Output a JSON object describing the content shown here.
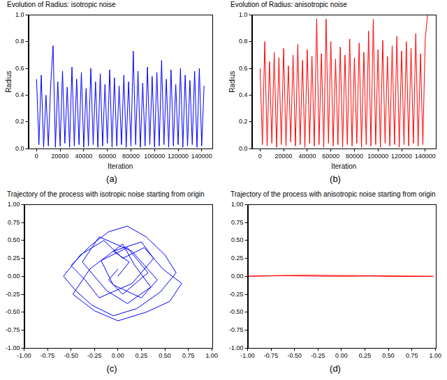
{
  "chart_data": [
    {
      "type": "line",
      "caption": "(a)",
      "title": "Evolution of Radius: isotropic noise",
      "xlabel": "Iteration",
      "ylabel": "Radius",
      "color": "#0000ff",
      "grid": false,
      "xlim": [
        -7000,
        149000
      ],
      "xticks": [
        0,
        20000,
        40000,
        60000,
        80000,
        100000,
        120000,
        140000
      ],
      "ylim": [
        0,
        1
      ],
      "yticks": [
        {
          "value": 0,
          "label": "0.0"
        },
        0.2,
        0.4,
        0.6,
        0.8,
        {
          "value": 1,
          "label": "1.0"
        }
      ],
      "x": [
        0,
        2000,
        4000,
        6000,
        8000,
        10000,
        12000,
        14000,
        16000,
        18000,
        20000,
        22000,
        24000,
        26000,
        28000,
        30000,
        32000,
        34000,
        36000,
        38000,
        40000,
        42000,
        44000,
        46000,
        48000,
        50000,
        52000,
        54000,
        56000,
        58000,
        60000,
        62000,
        64000,
        66000,
        68000,
        70000,
        72000,
        74000,
        76000,
        78000,
        80000,
        82000,
        84000,
        86000,
        88000,
        90000,
        92000,
        94000,
        96000,
        98000,
        100000,
        102000,
        104000,
        106000,
        108000,
        110000,
        112000,
        114000,
        116000,
        118000,
        120000,
        122000,
        124000,
        126000,
        128000,
        130000,
        132000,
        134000,
        136000,
        138000,
        140000,
        142000
      ],
      "values": [
        0.52,
        0.03,
        0.55,
        0.01,
        0.4,
        0.02,
        0.48,
        0.77,
        0.01,
        0.5,
        0.02,
        0.58,
        0.04,
        0.46,
        0.01,
        0.61,
        0.02,
        0.52,
        0.03,
        0.57,
        0.01,
        0.45,
        0.02,
        0.6,
        0.03,
        0.5,
        0.01,
        0.56,
        0.02,
        0.48,
        0.04,
        0.59,
        0.01,
        0.53,
        0.02,
        0.47,
        0.03,
        0.55,
        0.01,
        0.5,
        0.02,
        0.73,
        0.03,
        0.58,
        0.01,
        0.49,
        0.02,
        0.61,
        0.03,
        0.54,
        0.01,
        0.57,
        0.02,
        0.66,
        0.03,
        0.52,
        0.01,
        0.59,
        0.02,
        0.48,
        0.03,
        0.6,
        0.01,
        0.55,
        0.02,
        0.51,
        0.03,
        0.58,
        0.01,
        0.6,
        0.02,
        0.47
      ]
    },
    {
      "type": "line",
      "caption": "(b)",
      "title": "Evolution of Radius: anisotropic noise",
      "xlabel": "Iteration",
      "ylabel": "Radius",
      "color": "#ff0000",
      "grid": false,
      "xlim": [
        -7000,
        149000
      ],
      "xticks": [
        0,
        20000,
        40000,
        60000,
        80000,
        100000,
        120000,
        140000
      ],
      "ylim": [
        0,
        1
      ],
      "yticks": [
        {
          "value": 0,
          "label": "0.0"
        },
        0.2,
        0.4,
        0.6,
        0.8,
        {
          "value": 1,
          "label": "1.0"
        }
      ],
      "x": [
        0,
        2000,
        4000,
        6000,
        8000,
        10000,
        12000,
        14000,
        16000,
        18000,
        20000,
        22000,
        24000,
        26000,
        28000,
        30000,
        32000,
        34000,
        36000,
        38000,
        40000,
        42000,
        44000,
        46000,
        48000,
        50000,
        52000,
        54000,
        56000,
        58000,
        60000,
        62000,
        64000,
        66000,
        68000,
        70000,
        72000,
        74000,
        76000,
        78000,
        80000,
        82000,
        84000,
        86000,
        88000,
        90000,
        92000,
        94000,
        96000,
        98000,
        100000,
        102000,
        104000,
        106000,
        108000,
        110000,
        112000,
        114000,
        116000,
        118000,
        120000,
        122000,
        124000,
        126000,
        128000,
        130000,
        132000,
        134000,
        136000,
        138000,
        140000,
        142000
      ],
      "values": [
        0.6,
        0.03,
        0.8,
        0.02,
        0.65,
        0.04,
        0.72,
        0.01,
        0.68,
        0.03,
        0.75,
        0.02,
        0.62,
        0.05,
        0.7,
        0.02,
        0.78,
        0.03,
        0.66,
        0.01,
        0.74,
        0.04,
        0.69,
        0.02,
        0.97,
        0.03,
        0.71,
        0.01,
        0.97,
        0.04,
        0.8,
        0.02,
        0.67,
        0.03,
        0.76,
        0.01,
        0.7,
        0.03,
        0.82,
        0.02,
        0.68,
        0.04,
        0.79,
        0.01,
        0.72,
        0.03,
        0.88,
        0.02,
        0.97,
        0.03,
        0.74,
        0.01,
        0.81,
        0.04,
        0.69,
        0.02,
        0.77,
        0.03,
        0.84,
        0.01,
        0.73,
        0.03,
        0.8,
        0.02,
        0.75,
        0.04,
        0.86,
        0.02,
        0.71,
        0.03,
        0.82,
        1.0
      ]
    },
    {
      "type": "line",
      "caption": "(c)",
      "title": "Trajectory of the process with isotropic noise starting from origin",
      "color": "#0000ff",
      "grid": false,
      "xlim": [
        -1,
        1
      ],
      "xticks": [
        {
          "value": -1,
          "label": "-1.00"
        },
        -0.75,
        {
          "value": -0.5,
          "label": "-0.50"
        },
        -0.25,
        {
          "value": 0,
          "label": "0.00"
        },
        0.25,
        {
          "value": 0.5,
          "label": "0.50"
        },
        0.75,
        {
          "value": 1,
          "label": "1.00"
        }
      ],
      "ylim": [
        -1,
        1
      ],
      "yticks": [
        {
          "value": -1,
          "label": "-1.00"
        },
        -0.75,
        {
          "value": -0.5,
          "label": "-0.50"
        },
        -0.25,
        {
          "value": 0,
          "label": "0.00"
        },
        0.25,
        {
          "value": 0.5,
          "label": "0.50"
        },
        0.75,
        {
          "value": 1,
          "label": "1.00"
        }
      ],
      "x": [
        0,
        0.12,
        -0.05,
        0.25,
        0.38,
        0.15,
        -0.2,
        -0.35,
        -0.5,
        -0.3,
        -0.1,
        0.1,
        0.3,
        0.5,
        0.62,
        0.45,
        0.2,
        -0.05,
        -0.28,
        -0.45,
        -0.58,
        -0.4,
        -0.15,
        0.05,
        0.28,
        0.48,
        0.68,
        0.55,
        0.3,
        0.0,
        -0.25,
        -0.48,
        -0.3,
        0.05,
        0.18,
        0.35,
        0.1,
        -0.12,
        -0.38,
        -0.2,
        0.15,
        0.42,
        0.25,
        -0.05,
        -0.18,
        0.1,
        0.32,
        0.05,
        -0.1,
        0.0
      ],
      "values": [
        0,
        0.2,
        0.35,
        0.48,
        0.25,
        -0.1,
        -0.3,
        -0.05,
        0.15,
        0.42,
        0.62,
        0.7,
        0.55,
        0.3,
        0.05,
        -0.22,
        -0.45,
        -0.55,
        -0.4,
        -0.2,
        0.0,
        0.3,
        0.5,
        0.25,
        0.4,
        0.1,
        -0.1,
        -0.35,
        -0.5,
        -0.62,
        -0.48,
        -0.25,
        0.1,
        0.45,
        0.15,
        -0.15,
        -0.38,
        -0.2,
        0.2,
        0.55,
        0.35,
        -0.05,
        -0.3,
        -0.12,
        0.22,
        0.4,
        0.05,
        -0.25,
        -0.05,
        0.1
      ]
    },
    {
      "type": "line",
      "caption": "(d)",
      "title": "Trajectory of the process with anisotropic noise starting from origin",
      "color": "#ff0000",
      "grid": false,
      "xlim": [
        -1,
        1
      ],
      "xticks": [
        {
          "value": -1,
          "label": "-1.00"
        },
        -0.75,
        {
          "value": -0.5,
          "label": "-0.50"
        },
        -0.25,
        {
          "value": 0,
          "label": "0.00"
        },
        0.25,
        {
          "value": 0.5,
          "label": "0.50"
        },
        0.75,
        {
          "value": 1,
          "label": "1.00"
        }
      ],
      "ylim": [
        -1,
        1
      ],
      "yticks": [
        {
          "value": -1,
          "label": "-1.00"
        },
        -0.75,
        {
          "value": -0.5,
          "label": "-0.50"
        },
        -0.25,
        {
          "value": 0,
          "label": "0.00"
        },
        0.25,
        {
          "value": 0.5,
          "label": "0.50"
        },
        0.75,
        {
          "value": 1,
          "label": "1.00"
        }
      ],
      "x": [
        0,
        -0.3,
        -0.6,
        -0.9,
        -1.0,
        -0.7,
        -0.4,
        -0.1,
        0.2,
        0.5,
        0.8,
        0.98,
        0.6,
        0.3,
        0
      ],
      "values": [
        0,
        0.003,
        0.008,
        0.004,
        0.0,
        0.01,
        0.015,
        0.012,
        0.01,
        0.006,
        0.003,
        0.0,
        -0.002,
        0.004,
        0.0
      ]
    }
  ]
}
